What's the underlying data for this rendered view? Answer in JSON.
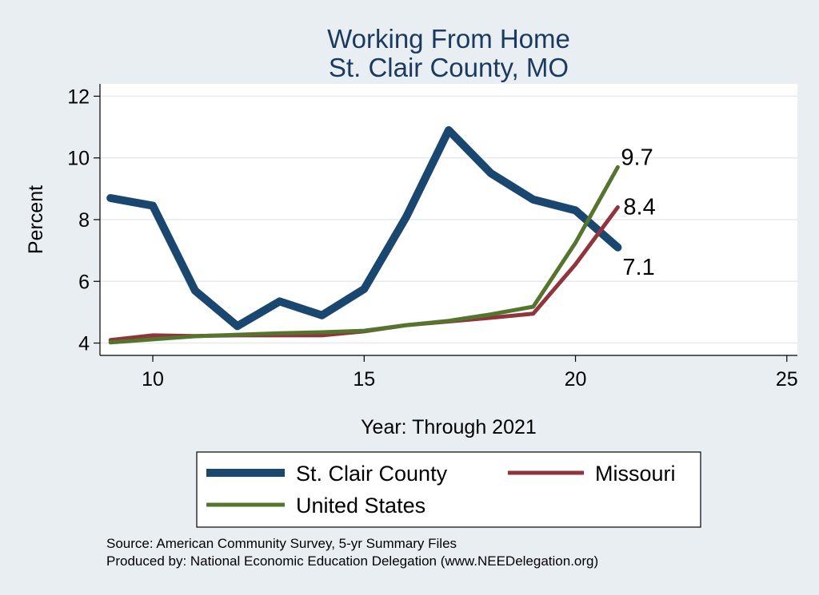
{
  "chart_data": {
    "type": "line",
    "title": "Working From Home",
    "subtitle": "St. Clair County, MO",
    "xlabel": "Year: Through 2021",
    "ylabel": "Percent",
    "xlim": [
      8.75,
      25.25
    ],
    "ylim": [
      3.6,
      12.4
    ],
    "x_ticks": [
      10,
      15,
      20,
      25
    ],
    "y_ticks": [
      4,
      6,
      8,
      10,
      12
    ],
    "grid": true,
    "legend_position": "bottom",
    "series": [
      {
        "name": "St. Clair County",
        "color": "#1a476f",
        "x": [
          9,
          10,
          11,
          12,
          13,
          14,
          15,
          16,
          17,
          18,
          19,
          20,
          21
        ],
        "values": [
          8.7,
          8.45,
          5.7,
          4.55,
          5.35,
          4.9,
          5.75,
          8.1,
          10.9,
          9.5,
          8.65,
          8.3,
          7.1
        ],
        "end_label": "7.1"
      },
      {
        "name": "Missouri",
        "color": "#90353b",
        "x": [
          9,
          10,
          11,
          12,
          13,
          14,
          15,
          16,
          17,
          18,
          19,
          20,
          21
        ],
        "values": [
          4.1,
          4.25,
          4.23,
          4.25,
          4.25,
          4.25,
          4.38,
          4.58,
          4.7,
          4.82,
          4.95,
          6.55,
          8.4
        ],
        "end_label": "8.4"
      },
      {
        "name": "United States",
        "color": "#55752f",
        "x": [
          9,
          10,
          11,
          12,
          13,
          14,
          15,
          16,
          17,
          18,
          19,
          20,
          21
        ],
        "values": [
          4.02,
          4.12,
          4.22,
          4.27,
          4.32,
          4.35,
          4.4,
          4.58,
          4.72,
          4.93,
          5.18,
          7.25,
          9.7
        ],
        "end_label": "9.7"
      }
    ],
    "source_lines": [
      "Source: American Community Survey, 5-yr Summary Files",
      "Produced by: National Economic Education Delegation (www.NEEDelegation.org)"
    ]
  }
}
